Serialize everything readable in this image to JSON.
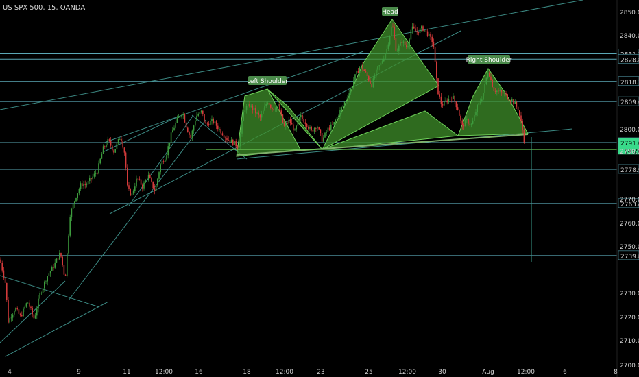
{
  "header": {
    "symbol_label": "US SPX 500, 15, OANDA"
  },
  "colors": {
    "background": "#000000",
    "up_candle": "#3d9b3d",
    "down_candle": "#d23a3a",
    "hline": "#5aa7b5",
    "trendline": "#3c8a84",
    "pattern_fill": "#3f8f2a",
    "pattern_stroke": "#6fd15a",
    "neckline": "#7fb06a",
    "label_bg": "#4a8a4a",
    "axis_text": "#cfcfcf",
    "price_tag": "#4ec98a",
    "current_tag": "#39d98a",
    "drop_line": "#3a9a8a"
  },
  "chart_data": {
    "type": "candlestick",
    "title": "",
    "xlabel": "",
    "ylabel": "",
    "ylim": [
      2700,
      2852
    ],
    "x_ticks": [
      "4",
      "9",
      "11",
      "12:00",
      "16",
      "18",
      "12:00",
      "23",
      "25",
      "12:00",
      "30",
      "Aug",
      "12:00",
      "6",
      "8"
    ],
    "y_ticks": [
      "2850.0",
      "2840.0",
      "2800.0",
      "2790.0",
      "2770.0",
      "2760.0",
      "2750.0",
      "2730.0",
      "2720.0",
      "2710.0",
      "2700.0"
    ],
    "horizontal_levels": [
      "2831.2",
      "2828.8",
      "2818.7",
      "2809.6",
      "2791.0",
      "2778.9",
      "2763.4",
      "2739.8"
    ],
    "current_price_tag": "14:20",
    "pattern_labels": [
      "Left Shoulder",
      "Head",
      "Right Shoulder"
    ],
    "price_path": [
      [
        0,
        2738
      ],
      [
        8,
        2727
      ],
      [
        12,
        2710
      ],
      [
        22,
        2716
      ],
      [
        30,
        2712
      ],
      [
        40,
        2719
      ],
      [
        50,
        2711
      ],
      [
        58,
        2722
      ],
      [
        68,
        2730
      ],
      [
        78,
        2735
      ],
      [
        88,
        2741
      ],
      [
        95,
        2729
      ],
      [
        102,
        2758
      ],
      [
        110,
        2766
      ],
      [
        118,
        2772
      ],
      [
        126,
        2772
      ],
      [
        134,
        2775
      ],
      [
        142,
        2778
      ],
      [
        150,
        2788
      ],
      [
        158,
        2792
      ],
      [
        166,
        2787
      ],
      [
        176,
        2794
      ],
      [
        182,
        2786
      ],
      [
        186,
        2770
      ],
      [
        192,
        2767
      ],
      [
        200,
        2775
      ],
      [
        208,
        2771
      ],
      [
        216,
        2776
      ],
      [
        226,
        2769
      ],
      [
        234,
        2781
      ],
      [
        242,
        2785
      ],
      [
        250,
        2795
      ],
      [
        258,
        2801
      ],
      [
        266,
        2805
      ],
      [
        272,
        2798
      ],
      [
        278,
        2793
      ],
      [
        286,
        2803
      ],
      [
        294,
        2805
      ],
      [
        300,
        2799
      ],
      [
        310,
        2801
      ],
      [
        320,
        2797
      ],
      [
        330,
        2793
      ],
      [
        340,
        2791
      ],
      [
        348,
        2789
      ],
      [
        356,
        2806
      ],
      [
        364,
        2808
      ],
      [
        372,
        2805
      ],
      [
        380,
        2802
      ],
      [
        390,
        2810
      ],
      [
        398,
        2806
      ],
      [
        406,
        2808
      ],
      [
        414,
        2798
      ],
      [
        422,
        2801
      ],
      [
        430,
        2796
      ],
      [
        438,
        2803
      ],
      [
        446,
        2800
      ],
      [
        454,
        2796
      ],
      [
        462,
        2799
      ],
      [
        470,
        2792
      ],
      [
        478,
        2797
      ],
      [
        486,
        2799
      ],
      [
        494,
        2804
      ],
      [
        502,
        2809
      ],
      [
        510,
        2814
      ],
      [
        518,
        2821
      ],
      [
        526,
        2826
      ],
      [
        534,
        2822
      ],
      [
        542,
        2817
      ],
      [
        550,
        2824
      ],
      [
        556,
        2827
      ],
      [
        564,
        2833
      ],
      [
        572,
        2845
      ],
      [
        578,
        2832
      ],
      [
        586,
        2837
      ],
      [
        594,
        2834
      ],
      [
        600,
        2843
      ],
      [
        608,
        2841
      ],
      [
        616,
        2843
      ],
      [
        624,
        2840
      ],
      [
        632,
        2836
      ],
      [
        638,
        2815
      ],
      [
        644,
        2808
      ],
      [
        652,
        2810
      ],
      [
        660,
        2812
      ],
      [
        668,
        2806
      ],
      [
        674,
        2798
      ],
      [
        680,
        2801
      ],
      [
        688,
        2799
      ],
      [
        696,
        2807
      ],
      [
        704,
        2812
      ],
      [
        712,
        2824
      ],
      [
        720,
        2815
      ],
      [
        728,
        2814
      ],
      [
        736,
        2813
      ],
      [
        742,
        2811
      ],
      [
        748,
        2810
      ],
      [
        756,
        2806
      ],
      [
        762,
        2797
      ],
      [
        766,
        2789
      ]
    ]
  }
}
